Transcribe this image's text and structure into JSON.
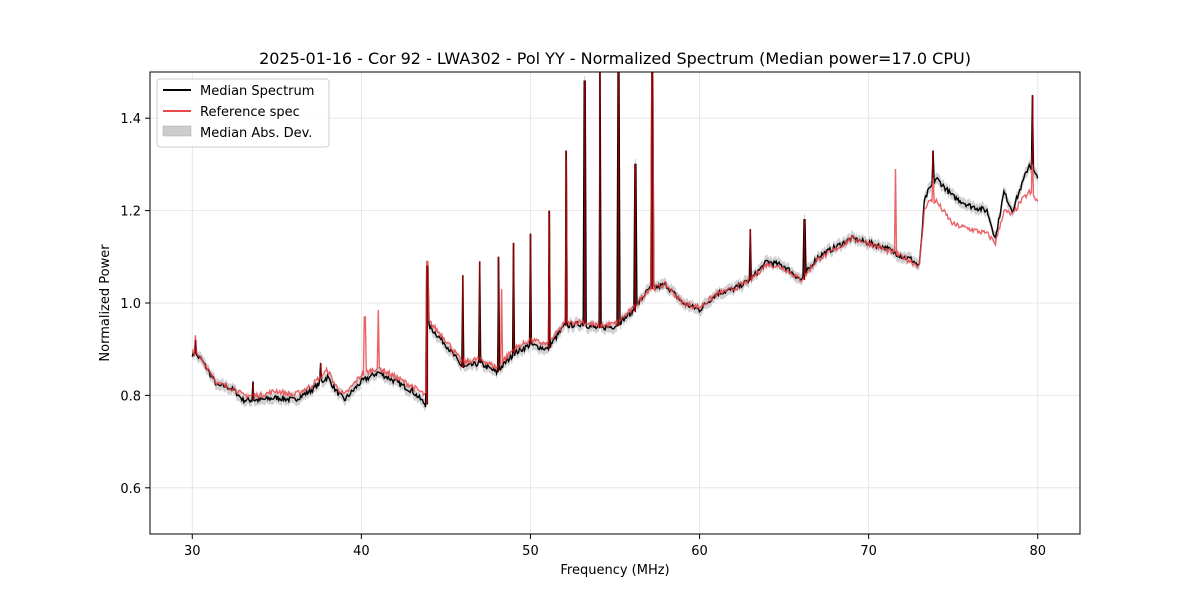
{
  "chart_data": {
    "type": "line",
    "title": "2025-01-16 - Cor 92 - LWA302 - Pol YY - Normalized Spectrum (Median power=17.0 CPU)",
    "xlabel": "Frequency (MHz)",
    "ylabel": "Normalized Power",
    "xlim": [
      27.5,
      82.5
    ],
    "ylim": [
      0.5,
      1.5
    ],
    "xticks": [
      30,
      40,
      50,
      60,
      70,
      80
    ],
    "xtick_labels": [
      "30",
      "40",
      "50",
      "60",
      "70",
      "80"
    ],
    "yticks": [
      0.6,
      0.8,
      1.0,
      1.2,
      1.4
    ],
    "ytick_labels": [
      "0.6",
      "0.8",
      "1.0",
      "1.2",
      "1.4"
    ],
    "grid": true,
    "legend_position": "top-left",
    "legend": [
      {
        "label": "Median Spectrum",
        "kind": "line",
        "color": "#000000"
      },
      {
        "label": "Reference spec",
        "kind": "line",
        "color": "#e8474c"
      },
      {
        "label": "Median Abs. Dev.",
        "kind": "band",
        "color": "#cccccc"
      }
    ],
    "x": [
      30,
      30.5,
      31,
      31.5,
      32,
      32.5,
      33,
      34,
      35,
      36,
      37,
      38,
      38.5,
      39,
      40,
      41,
      42,
      43,
      43.8,
      44,
      45,
      46,
      47,
      48,
      49,
      50,
      51,
      52,
      53,
      54,
      55,
      56,
      57,
      58,
      59,
      60,
      61,
      62,
      63,
      64,
      65,
      66,
      67,
      68,
      69,
      70,
      71,
      72,
      72.5,
      73,
      73.3,
      73.5,
      74,
      75,
      76,
      77,
      77.5,
      78,
      78.5,
      79,
      79.5,
      80
    ],
    "series": [
      {
        "name": "Median Spectrum",
        "color": "#000000",
        "values": [
          0.89,
          0.88,
          0.85,
          0.82,
          0.82,
          0.81,
          0.79,
          0.79,
          0.795,
          0.79,
          0.81,
          0.84,
          0.81,
          0.79,
          0.83,
          0.85,
          0.83,
          0.81,
          0.78,
          0.95,
          0.91,
          0.86,
          0.87,
          0.85,
          0.89,
          0.91,
          0.9,
          0.95,
          0.955,
          0.945,
          0.95,
          0.98,
          1.03,
          1.04,
          1.0,
          0.985,
          1.02,
          1.03,
          1.05,
          1.09,
          1.08,
          1.05,
          1.1,
          1.12,
          1.14,
          1.13,
          1.12,
          1.1,
          1.095,
          1.08,
          1.22,
          1.24,
          1.27,
          1.23,
          1.21,
          1.2,
          1.14,
          1.24,
          1.2,
          1.25,
          1.3,
          1.27
        ],
        "peaks": [
          {
            "x": 30.2,
            "y": 0.92
          },
          {
            "x": 33.6,
            "y": 0.83
          },
          {
            "x": 37.6,
            "y": 0.87
          },
          {
            "x": 43.9,
            "y": 1.08
          },
          {
            "x": 46.0,
            "y": 1.06
          },
          {
            "x": 47.0,
            "y": 1.09
          },
          {
            "x": 48.1,
            "y": 1.1
          },
          {
            "x": 49.0,
            "y": 1.13
          },
          {
            "x": 50.0,
            "y": 1.15
          },
          {
            "x": 51.1,
            "y": 1.2
          },
          {
            "x": 52.1,
            "y": 1.33
          },
          {
            "x": 53.2,
            "y": 1.48
          },
          {
            "x": 54.1,
            "y": 1.5
          },
          {
            "x": 55.2,
            "y": 1.5
          },
          {
            "x": 56.2,
            "y": 1.3
          },
          {
            "x": 57.2,
            "y": 1.5
          },
          {
            "x": 63.0,
            "y": 1.16
          },
          {
            "x": 66.2,
            "y": 1.18
          },
          {
            "x": 73.8,
            "y": 1.33
          },
          {
            "x": 79.7,
            "y": 1.45
          }
        ]
      },
      {
        "name": "Reference spec",
        "color": "#e8474c",
        "values": [
          0.895,
          0.88,
          0.855,
          0.825,
          0.82,
          0.815,
          0.8,
          0.8,
          0.81,
          0.8,
          0.82,
          0.855,
          0.82,
          0.8,
          0.845,
          0.86,
          0.84,
          0.82,
          0.8,
          0.96,
          0.92,
          0.87,
          0.88,
          0.86,
          0.9,
          0.92,
          0.91,
          0.955,
          0.96,
          0.95,
          0.955,
          0.985,
          1.03,
          1.04,
          1.0,
          0.99,
          1.02,
          1.03,
          1.05,
          1.085,
          1.075,
          1.05,
          1.095,
          1.115,
          1.14,
          1.13,
          1.115,
          1.1,
          1.09,
          1.08,
          1.2,
          1.22,
          1.22,
          1.17,
          1.16,
          1.15,
          1.13,
          1.2,
          1.19,
          1.22,
          1.24,
          1.22
        ],
        "peaks": [
          {
            "x": 30.2,
            "y": 0.93
          },
          {
            "x": 40.2,
            "y": 0.97
          },
          {
            "x": 41.0,
            "y": 0.985
          },
          {
            "x": 43.9,
            "y": 1.09
          },
          {
            "x": 48.3,
            "y": 1.03
          },
          {
            "x": 51.1,
            "y": 1.19
          },
          {
            "x": 52.1,
            "y": 1.31
          },
          {
            "x": 57.2,
            "y": 1.5
          },
          {
            "x": 71.6,
            "y": 1.29
          },
          {
            "x": 73.8,
            "y": 1.28
          },
          {
            "x": 79.7,
            "y": 1.33
          }
        ]
      }
    ],
    "mad_band": {
      "name": "Median Abs. Dev.",
      "color": "#cccccc",
      "half_width": 0.012
    }
  }
}
